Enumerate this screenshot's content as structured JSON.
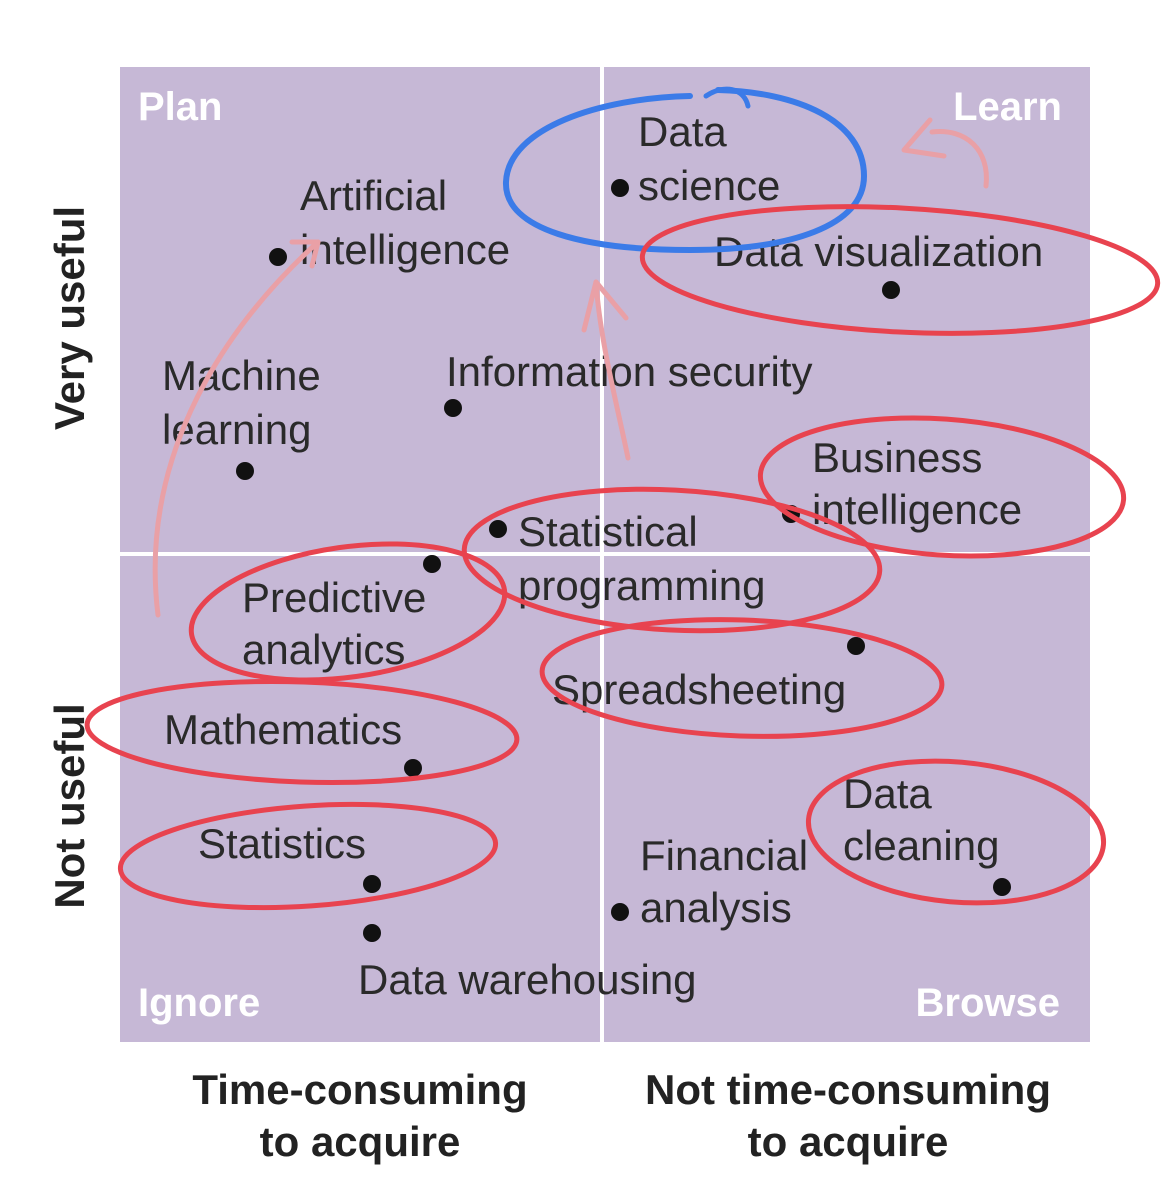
{
  "quadrants": {
    "top_left": "Plan",
    "top_right": "Learn",
    "bottom_left": "Ignore",
    "bottom_right": "Browse"
  },
  "axes": {
    "y_top": "Very useful",
    "y_bottom": "Not useful",
    "x_left": [
      "Time-consuming",
      "to acquire"
    ],
    "x_right": [
      "Not time-consuming",
      "to acquire"
    ]
  },
  "skills": {
    "data_science": [
      "Data",
      "science"
    ],
    "artificial_intelligence": [
      "Artificial",
      "intelligence"
    ],
    "data_visualization": [
      "Data visualization"
    ],
    "machine_learning": [
      "Machine",
      "learning"
    ],
    "information_security": [
      "Information security"
    ],
    "business_intelligence": [
      "Business",
      "intelligence"
    ],
    "statistical_programming": [
      "Statistical",
      "programming"
    ],
    "predictive_analytics": [
      "Predictive",
      "analytics"
    ],
    "spreadsheeting": [
      "Spreadsheeting"
    ],
    "mathematics": [
      "Mathematics"
    ],
    "data_cleaning": [
      "Data",
      "cleaning"
    ],
    "financial_analysis": [
      "Financial",
      "analysis"
    ],
    "statistics": [
      "Statistics"
    ],
    "data_warehousing": [
      "Data warehousing"
    ]
  },
  "colors": {
    "panel": "#c6b8d6",
    "divider": "#ffffff",
    "red_annotation": "#e8434f",
    "blue_annotation": "#3b7be8",
    "pink_arrow": "#e9a0a6",
    "dot": "#111111"
  }
}
